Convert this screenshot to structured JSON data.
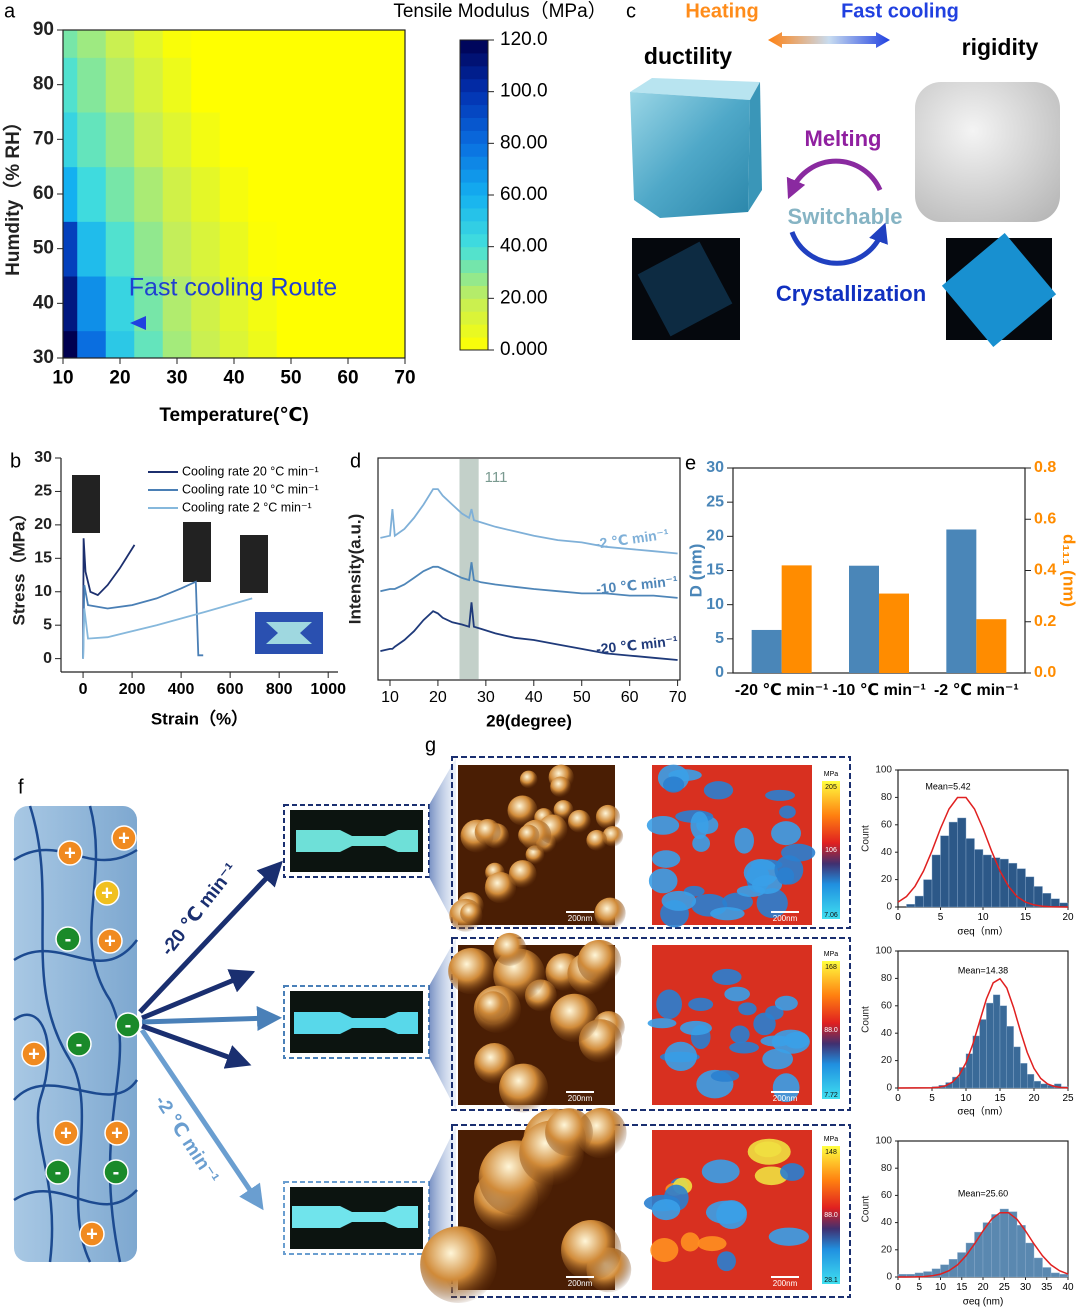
{
  "panel_labels": [
    "a",
    "b",
    "c",
    "d",
    "e",
    "f",
    "g"
  ],
  "chart_data": [
    {
      "type": "contour",
      "title": "Tensile Modulus（MPa）",
      "x_label": "Temperature(℃)",
      "y_label": "Humdity（% RH）",
      "annotation": "Fast cooling Route",
      "x": [
        10,
        15,
        20,
        25,
        30,
        35,
        40,
        45,
        50,
        55,
        60,
        65,
        70
      ],
      "y": [
        30,
        40,
        50,
        60,
        70,
        80,
        90
      ],
      "z": [
        [
          120,
          80,
          50,
          35,
          25,
          18,
          12,
          6,
          0,
          0,
          0,
          0,
          0
        ],
        [
          110,
          70,
          45,
          32,
          23,
          16,
          10,
          4,
          0,
          0,
          0,
          0,
          0
        ],
        [
          95,
          55,
          38,
          28,
          20,
          13,
          7,
          1,
          0,
          0,
          0,
          0,
          0
        ],
        [
          60,
          42,
          32,
          24,
          16,
          9,
          3,
          0,
          0,
          0,
          0,
          0,
          0
        ],
        [
          45,
          35,
          27,
          19,
          11,
          4,
          0,
          0,
          0,
          0,
          0,
          0,
          0
        ],
        [
          38,
          30,
          22,
          14,
          6,
          0,
          0,
          0,
          0,
          0,
          0,
          0,
          0
        ],
        [
          32,
          26,
          18,
          10,
          2,
          0,
          0,
          0,
          0,
          0,
          0,
          0,
          0
        ]
      ],
      "xlim": [
        10,
        70
      ],
      "ylim": [
        30,
        90
      ],
      "xticks": [
        10,
        20,
        30,
        40,
        50,
        60,
        70
      ],
      "yticks": [
        30,
        40,
        50,
        60,
        70,
        80,
        90
      ],
      "clim": [
        0,
        120
      ],
      "colormap": [
        "#ffff00",
        "#c4ee5a",
        "#44e0dc",
        "#14b0f0",
        "#0a6ee0",
        "#0230b0",
        "#000050"
      ],
      "cticks": [
        {
          "value": 120,
          "label": "120.0"
        },
        {
          "value": 100,
          "label": "100.0"
        },
        {
          "value": 80,
          "label": "80.00"
        },
        {
          "value": 60,
          "label": "60.00"
        },
        {
          "value": 40,
          "label": "40.00"
        },
        {
          "value": 20,
          "label": "20.00"
        },
        {
          "value": 0,
          "label": "0.000"
        }
      ]
    },
    {
      "type": "line",
      "x_label": "Strain（%）",
      "y_label": "Stress（MPa）",
      "legend": "upper right",
      "series": [
        {
          "name": "Cooling rate 20 °C min⁻¹",
          "color": "#1c2f6e",
          "x": [
            0,
            2,
            10,
            30,
            60,
            100,
            150,
            210
          ],
          "values": [
            0,
            18,
            13,
            10,
            9.5,
            11,
            13.5,
            17
          ]
        },
        {
          "name": "Cooling rate 10 °C min⁻¹",
          "color": "#4a7fb5",
          "x": [
            0,
            5,
            20,
            100,
            200,
            300,
            400,
            460,
            470,
            490
          ],
          "values": [
            0,
            11,
            8,
            7.5,
            8,
            9,
            10.5,
            11.5,
            0.5,
            0.5
          ]
        },
        {
          "name": "Cooling rate  2 °C min⁻¹",
          "color": "#86b8dc",
          "x": [
            0,
            5,
            20,
            100,
            300,
            500,
            690
          ],
          "values": [
            0,
            7.5,
            3,
            3.2,
            5,
            7,
            9
          ]
        }
      ],
      "xlim": [
        -90,
        1040
      ],
      "ylim": [
        -2,
        30
      ],
      "xticks": [
        0,
        200,
        400,
        600,
        800,
        1000
      ],
      "yticks": [
        0,
        5,
        10,
        15,
        20,
        25,
        30
      ]
    },
    {
      "type": "line",
      "x_label": "2θ(degree)",
      "y_label": "Intensity(a.u.)",
      "annotation": "111",
      "highlight_range": [
        24.5,
        28.5
      ],
      "x": [
        8,
        10,
        10.5,
        11,
        13,
        15,
        17,
        19,
        20,
        21,
        23,
        25,
        26.5,
        27,
        27.5,
        29,
        32,
        36,
        40,
        45,
        50,
        55,
        60,
        65,
        70
      ],
      "series": [
        {
          "name": "-2 ℃ min⁻¹",
          "color": "#7fb0d8",
          "values": [
            6.4,
            6.5,
            7.7,
            6.5,
            6.8,
            7.3,
            7.9,
            8.6,
            8.6,
            8.3,
            7.9,
            7.5,
            7.3,
            7.7,
            7.2,
            7.1,
            6.9,
            6.7,
            6.5,
            6.3,
            6.2,
            6.0,
            5.9,
            5.8,
            5.7
          ]
        },
        {
          "name": "-10 ℃ min⁻¹",
          "color": "#4f86b8",
          "values": [
            4.0,
            4.1,
            4.1,
            4.1,
            4.3,
            4.6,
            4.9,
            5.1,
            5.1,
            5.0,
            4.8,
            4.6,
            4.5,
            5.3,
            4.5,
            4.4,
            4.3,
            4.2,
            4.1,
            4.0,
            3.9,
            3.9,
            3.8,
            3.8,
            3.7
          ]
        },
        {
          "name": "-20 ℃ min⁻¹",
          "color": "#1f3a7a",
          "values": [
            1.3,
            1.4,
            1.4,
            1.5,
            1.8,
            2.2,
            2.7,
            3.1,
            3.0,
            2.8,
            2.6,
            2.5,
            2.4,
            3.5,
            2.4,
            2.3,
            2.1,
            1.9,
            1.8,
            1.6,
            1.4,
            1.2,
            1.1,
            1.0,
            0.9
          ]
        }
      ],
      "xlim": [
        7.5,
        70.5
      ],
      "ylim": [
        0,
        10
      ],
      "xticks": [
        10,
        20,
        30,
        40,
        50,
        60,
        70
      ]
    },
    {
      "type": "bar",
      "y_label": "D (nm)",
      "y2_label": "d₁₁₁ (nm)",
      "categories": [
        "-20 ℃ min⁻¹",
        "-10 ℃ min⁻¹",
        "-2 ℃ min⁻¹"
      ],
      "series": [
        {
          "color": "#4a86b8",
          "values": [
            6.3,
            15.7,
            21.0
          ]
        },
        {
          "color": "#ff8c00",
          "axis": "y2",
          "values": [
            0.42,
            0.31,
            0.21
          ]
        }
      ],
      "ylim": [
        0,
        30
      ],
      "yticks": [
        0,
        5,
        10,
        15,
        20,
        25,
        30
      ],
      "y2lim": [
        0,
        0.8
      ],
      "y2ticks": [
        {
          "value": 0,
          "label": "0.0"
        },
        0.2,
        0.4,
        0.6,
        0.8
      ]
    },
    {
      "type": "histogram",
      "x_label": "σeq（nm）",
      "y_label": "Count",
      "annotation": "Mean=5.42",
      "color": "#2c5888",
      "bins": [
        0,
        1,
        2,
        3,
        4,
        5,
        6,
        7,
        8,
        9,
        10,
        11,
        12,
        13,
        14,
        15,
        16,
        17,
        18,
        19,
        20
      ],
      "counts": [
        0,
        2,
        8,
        20,
        38,
        52,
        62,
        65,
        50,
        42,
        38,
        36,
        35,
        32,
        28,
        22,
        15,
        10,
        6,
        3
      ],
      "fit": {
        "color": "#e02020",
        "x": [
          0,
          1,
          2,
          3,
          4,
          5,
          6,
          7,
          8,
          9,
          10,
          11,
          12,
          13,
          14,
          15,
          16,
          17,
          18,
          19,
          20
        ],
        "values": [
          3.6,
          7.7,
          15.1,
          26.3,
          41,
          57.3,
          71.5,
          79.9,
          79.9,
          71.5,
          57.3,
          41,
          26.3,
          15.1,
          7.7,
          3.6,
          1.5,
          0.5,
          0.2,
          0.1,
          0
        ]
      },
      "xlim": [
        0,
        20
      ],
      "ylim": [
        0,
        100
      ],
      "xticks": [
        0,
        5,
        10,
        15,
        20
      ],
      "yticks": [
        0,
        20,
        40,
        60,
        80,
        100
      ]
    },
    {
      "type": "histogram",
      "x_label": "σeq（nm）",
      "y_label": "Count",
      "annotation": "Mean=14.38",
      "color": "#3a6a98",
      "bins": [
        5,
        6,
        7,
        8,
        9,
        10,
        11,
        12,
        13,
        14,
        15,
        16,
        17,
        18,
        19,
        20,
        21,
        22,
        23,
        24,
        25
      ],
      "counts": [
        1,
        2,
        4,
        8,
        15,
        25,
        38,
        50,
        62,
        68,
        60,
        45,
        30,
        18,
        10,
        5,
        3,
        2,
        3,
        1
      ],
      "fit": {
        "color": "#e02020",
        "x": [
          0,
          5,
          6,
          7,
          8,
          9,
          10,
          11,
          12,
          13,
          14,
          15,
          16,
          17,
          18,
          19,
          20,
          21,
          22,
          23,
          24,
          25
        ],
        "values": [
          0,
          0.2,
          0.6,
          1.6,
          4.2,
          9.4,
          18.4,
          31.9,
          48.5,
          65,
          76.8,
          79.8,
          73,
          58.7,
          41.6,
          26,
          14.3,
          6.9,
          2.9,
          1.1,
          0.4,
          0.1
        ]
      },
      "xlim": [
        0,
        25
      ],
      "ylim": [
        0,
        100
      ],
      "xticks": [
        0,
        5,
        10,
        15,
        20,
        25
      ],
      "yticks": [
        0,
        20,
        40,
        60,
        80,
        100
      ]
    },
    {
      "type": "histogram",
      "x_label": "σeq (nm)",
      "y_label": "Count",
      "annotation": "Mean=25.60",
      "color": "#5a88b0",
      "bins": [
        0,
        2,
        4,
        6,
        8,
        10,
        12,
        14,
        16,
        18,
        20,
        22,
        24,
        26,
        28,
        30,
        32,
        34,
        36,
        38,
        40
      ],
      "counts": [
        2,
        2,
        3,
        4,
        6,
        9,
        13,
        18,
        25,
        33,
        40,
        46,
        50,
        48,
        38,
        25,
        14,
        7,
        3,
        2
      ],
      "fit": {
        "color": "#e02020",
        "x": [
          0,
          2,
          4,
          6,
          8,
          10,
          12,
          14,
          16,
          18,
          20,
          22,
          24,
          26,
          28,
          30,
          32,
          34,
          36,
          38,
          40
        ],
        "values": [
          0,
          0.03,
          0.1,
          0.3,
          0.9,
          2.1,
          4.6,
          8.9,
          15.6,
          24.3,
          33.9,
          42.4,
          47.3,
          47.3,
          42.4,
          33.9,
          24.3,
          15.6,
          8.9,
          4.6,
          2.1
        ]
      },
      "xlim": [
        0,
        40
      ],
      "ylim": [
        0,
        100
      ],
      "xticks": [
        0,
        5,
        10,
        15,
        20,
        25,
        30,
        35,
        40
      ],
      "yticks": [
        0,
        20,
        40,
        60,
        80,
        100
      ]
    }
  ],
  "diagram_c": {
    "heating": "Heating",
    "fast_cooling": "Fast cooling",
    "left_state": "ductility",
    "right_state": "rigidity",
    "melting": "Melting",
    "switchable": "Switchable",
    "crystallization": "Crystallization"
  },
  "diagram_f": {
    "positive": "+",
    "negative": "-",
    "fast_rate": "-20 ℃ min⁻¹",
    "slow_rate": "-2 ℃ min⁻¹"
  },
  "afm_rows": [
    {
      "unit": "MPa",
      "colorbar_labels": [
        "205",
        "106",
        "7.06"
      ],
      "scale_bars": [
        "200nm",
        "200nm"
      ]
    },
    {
      "unit": "MPa",
      "colorbar_labels": [
        "168",
        "88.0",
        "7.72"
      ],
      "scale_bars": [
        "200nm",
        "200nm"
      ]
    },
    {
      "unit": "MPa",
      "colorbar_labels": [
        "148",
        "88.0",
        "28.1"
      ],
      "scale_bars": [
        "200nm",
        "200nm"
      ]
    }
  ]
}
